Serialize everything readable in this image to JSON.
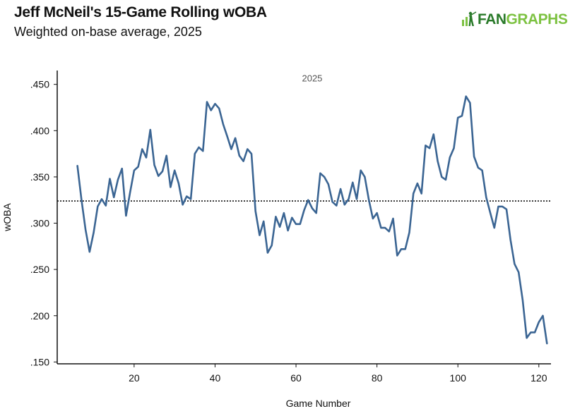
{
  "header": {
    "title": "Jeff McNeil's 15-Game Rolling wOBA",
    "subtitle": "Weighted on-base average, 2025"
  },
  "logo": {
    "fan": "FAN",
    "graphs": "GRAPHS"
  },
  "colors": {
    "line": "#3b6593",
    "reference": "#111111",
    "axis": "#111111",
    "logo_dark": "#2a7a2a",
    "logo_light": "#7dc242"
  },
  "chart_data": {
    "type": "line",
    "title": "Jeff McNeil's 15-Game Rolling wOBA",
    "subtitle": "Weighted on-base average, 2025",
    "xlabel": "Game Number",
    "ylabel": "wOBA",
    "xlim": [
      1,
      123
    ],
    "ylim": [
      0.148,
      0.465
    ],
    "xticks": [
      20,
      40,
      60,
      80,
      100,
      120
    ],
    "xtick_labels": [
      "20",
      "40",
      "60",
      "80",
      "100",
      "120"
    ],
    "yticks": [
      0.15,
      0.2,
      0.25,
      0.3,
      0.35,
      0.4,
      0.45
    ],
    "ytick_labels": [
      ".150",
      ".200",
      ".250",
      ".300",
      ".350",
      ".400",
      ".450"
    ],
    "reference_line": 0.324,
    "annotation": {
      "text": "2025",
      "x": 64,
      "y": 0.453
    },
    "grid": false,
    "series": [
      {
        "name": "15-game rolling wOBA",
        "x": [
          6,
          7,
          8,
          9,
          10,
          11,
          12,
          13,
          14,
          15,
          16,
          17,
          18,
          19,
          20,
          21,
          22,
          23,
          24,
          25,
          26,
          27,
          28,
          29,
          30,
          31,
          32,
          33,
          34,
          35,
          36,
          37,
          38,
          39,
          40,
          41,
          42,
          43,
          44,
          45,
          46,
          47,
          48,
          49,
          50,
          51,
          52,
          53,
          54,
          55,
          56,
          57,
          58,
          59,
          60,
          61,
          62,
          63,
          64,
          65,
          66,
          67,
          68,
          69,
          70,
          71,
          72,
          73,
          74,
          75,
          76,
          77,
          78,
          79,
          80,
          81,
          82,
          83,
          84,
          85,
          86,
          87,
          88,
          89,
          90,
          91,
          92,
          93,
          94,
          95,
          96,
          97,
          98,
          99,
          100,
          101,
          102,
          103,
          104,
          105,
          106,
          107,
          108,
          109,
          110,
          111,
          112,
          113,
          114,
          115,
          116,
          117,
          118,
          119,
          120,
          121,
          122
        ],
        "values": [
          0.362,
          0.325,
          0.293,
          0.269,
          0.29,
          0.318,
          0.326,
          0.319,
          0.348,
          0.328,
          0.347,
          0.359,
          0.308,
          0.333,
          0.357,
          0.361,
          0.38,
          0.371,
          0.401,
          0.363,
          0.351,
          0.356,
          0.373,
          0.339,
          0.357,
          0.343,
          0.32,
          0.329,
          0.326,
          0.375,
          0.382,
          0.378,
          0.431,
          0.422,
          0.429,
          0.424,
          0.407,
          0.394,
          0.38,
          0.392,
          0.373,
          0.367,
          0.38,
          0.375,
          0.313,
          0.287,
          0.302,
          0.268,
          0.276,
          0.307,
          0.296,
          0.311,
          0.292,
          0.306,
          0.299,
          0.299,
          0.314,
          0.325,
          0.316,
          0.311,
          0.354,
          0.35,
          0.342,
          0.323,
          0.319,
          0.337,
          0.32,
          0.326,
          0.344,
          0.326,
          0.357,
          0.35,
          0.325,
          0.305,
          0.311,
          0.295,
          0.295,
          0.291,
          0.305,
          0.265,
          0.272,
          0.272,
          0.29,
          0.332,
          0.343,
          0.332,
          0.384,
          0.381,
          0.396,
          0.367,
          0.35,
          0.347,
          0.371,
          0.381,
          0.414,
          0.416,
          0.437,
          0.43,
          0.372,
          0.36,
          0.357,
          0.328,
          0.311,
          0.295,
          0.318,
          0.318,
          0.315,
          0.282,
          0.256,
          0.247,
          0.217,
          0.176,
          0.182,
          0.182,
          0.193,
          0.2,
          0.17
        ]
      }
    ]
  }
}
